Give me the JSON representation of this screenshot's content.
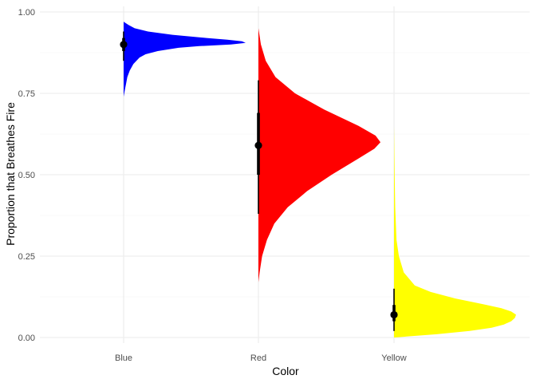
{
  "chart_data": {
    "type": "halfeye",
    "title": "",
    "xlabel": "Color",
    "ylabel": "Proportion that Breathes Fire",
    "ylim": [
      0,
      1
    ],
    "yticks": [
      0.0,
      0.25,
      0.5,
      0.75,
      1.0
    ],
    "ytick_labels": [
      "0.00",
      "0.25",
      "0.50",
      "0.75",
      "1.00"
    ],
    "categories": [
      "Blue",
      "Red",
      "Yellow"
    ],
    "colors": {
      "Blue": "#0000ff",
      "Red": "#ff0000",
      "Yellow": "#ffff00"
    },
    "grid": true,
    "legend": "none",
    "series": [
      {
        "category": "Blue",
        "point_estimate": 0.9,
        "interval_66": [
          0.88,
          0.92
        ],
        "interval_95": [
          0.85,
          0.94
        ],
        "density_range": [
          0.74,
          0.97
        ],
        "density": [
          [
            0.74,
            0.0
          ],
          [
            0.76,
            0.01
          ],
          [
            0.78,
            0.02
          ],
          [
            0.8,
            0.03
          ],
          [
            0.82,
            0.05
          ],
          [
            0.84,
            0.08
          ],
          [
            0.86,
            0.13
          ],
          [
            0.87,
            0.18
          ],
          [
            0.88,
            0.28
          ],
          [
            0.89,
            0.45
          ],
          [
            0.895,
            0.62
          ],
          [
            0.9,
            0.88
          ],
          [
            0.905,
            1.0
          ],
          [
            0.91,
            0.97
          ],
          [
            0.915,
            0.85
          ],
          [
            0.92,
            0.68
          ],
          [
            0.93,
            0.4
          ],
          [
            0.94,
            0.2
          ],
          [
            0.95,
            0.09
          ],
          [
            0.96,
            0.04
          ],
          [
            0.97,
            0.0
          ]
        ]
      },
      {
        "category": "Red",
        "point_estimate": 0.59,
        "interval_66": [
          0.5,
          0.69
        ],
        "interval_95": [
          0.38,
          0.79
        ],
        "density_range": [
          0.17,
          0.95
        ],
        "density": [
          [
            0.17,
            0.0
          ],
          [
            0.2,
            0.01
          ],
          [
            0.25,
            0.03
          ],
          [
            0.3,
            0.07
          ],
          [
            0.35,
            0.13
          ],
          [
            0.4,
            0.24
          ],
          [
            0.45,
            0.4
          ],
          [
            0.5,
            0.6
          ],
          [
            0.55,
            0.82
          ],
          [
            0.58,
            0.95
          ],
          [
            0.6,
            1.0
          ],
          [
            0.62,
            0.96
          ],
          [
            0.65,
            0.82
          ],
          [
            0.7,
            0.54
          ],
          [
            0.75,
            0.3
          ],
          [
            0.8,
            0.14
          ],
          [
            0.85,
            0.06
          ],
          [
            0.9,
            0.02
          ],
          [
            0.95,
            0.0
          ]
        ]
      },
      {
        "category": "Yellow",
        "point_estimate": 0.07,
        "interval_66": [
          0.05,
          0.1
        ],
        "interval_95": [
          0.02,
          0.15
        ],
        "density_range": [
          0.0,
          0.65
        ],
        "density": [
          [
            0.0,
            0.0
          ],
          [
            0.01,
            0.35
          ],
          [
            0.02,
            0.62
          ],
          [
            0.03,
            0.8
          ],
          [
            0.04,
            0.9
          ],
          [
            0.05,
            0.96
          ],
          [
            0.06,
            0.99
          ],
          [
            0.07,
            1.0
          ],
          [
            0.08,
            0.96
          ],
          [
            0.09,
            0.88
          ],
          [
            0.1,
            0.76
          ],
          [
            0.12,
            0.5
          ],
          [
            0.14,
            0.3
          ],
          [
            0.16,
            0.17
          ],
          [
            0.2,
            0.08
          ],
          [
            0.25,
            0.04
          ],
          [
            0.3,
            0.02
          ],
          [
            0.4,
            0.01
          ],
          [
            0.5,
            0.005
          ],
          [
            0.65,
            0.0
          ]
        ]
      }
    ]
  }
}
